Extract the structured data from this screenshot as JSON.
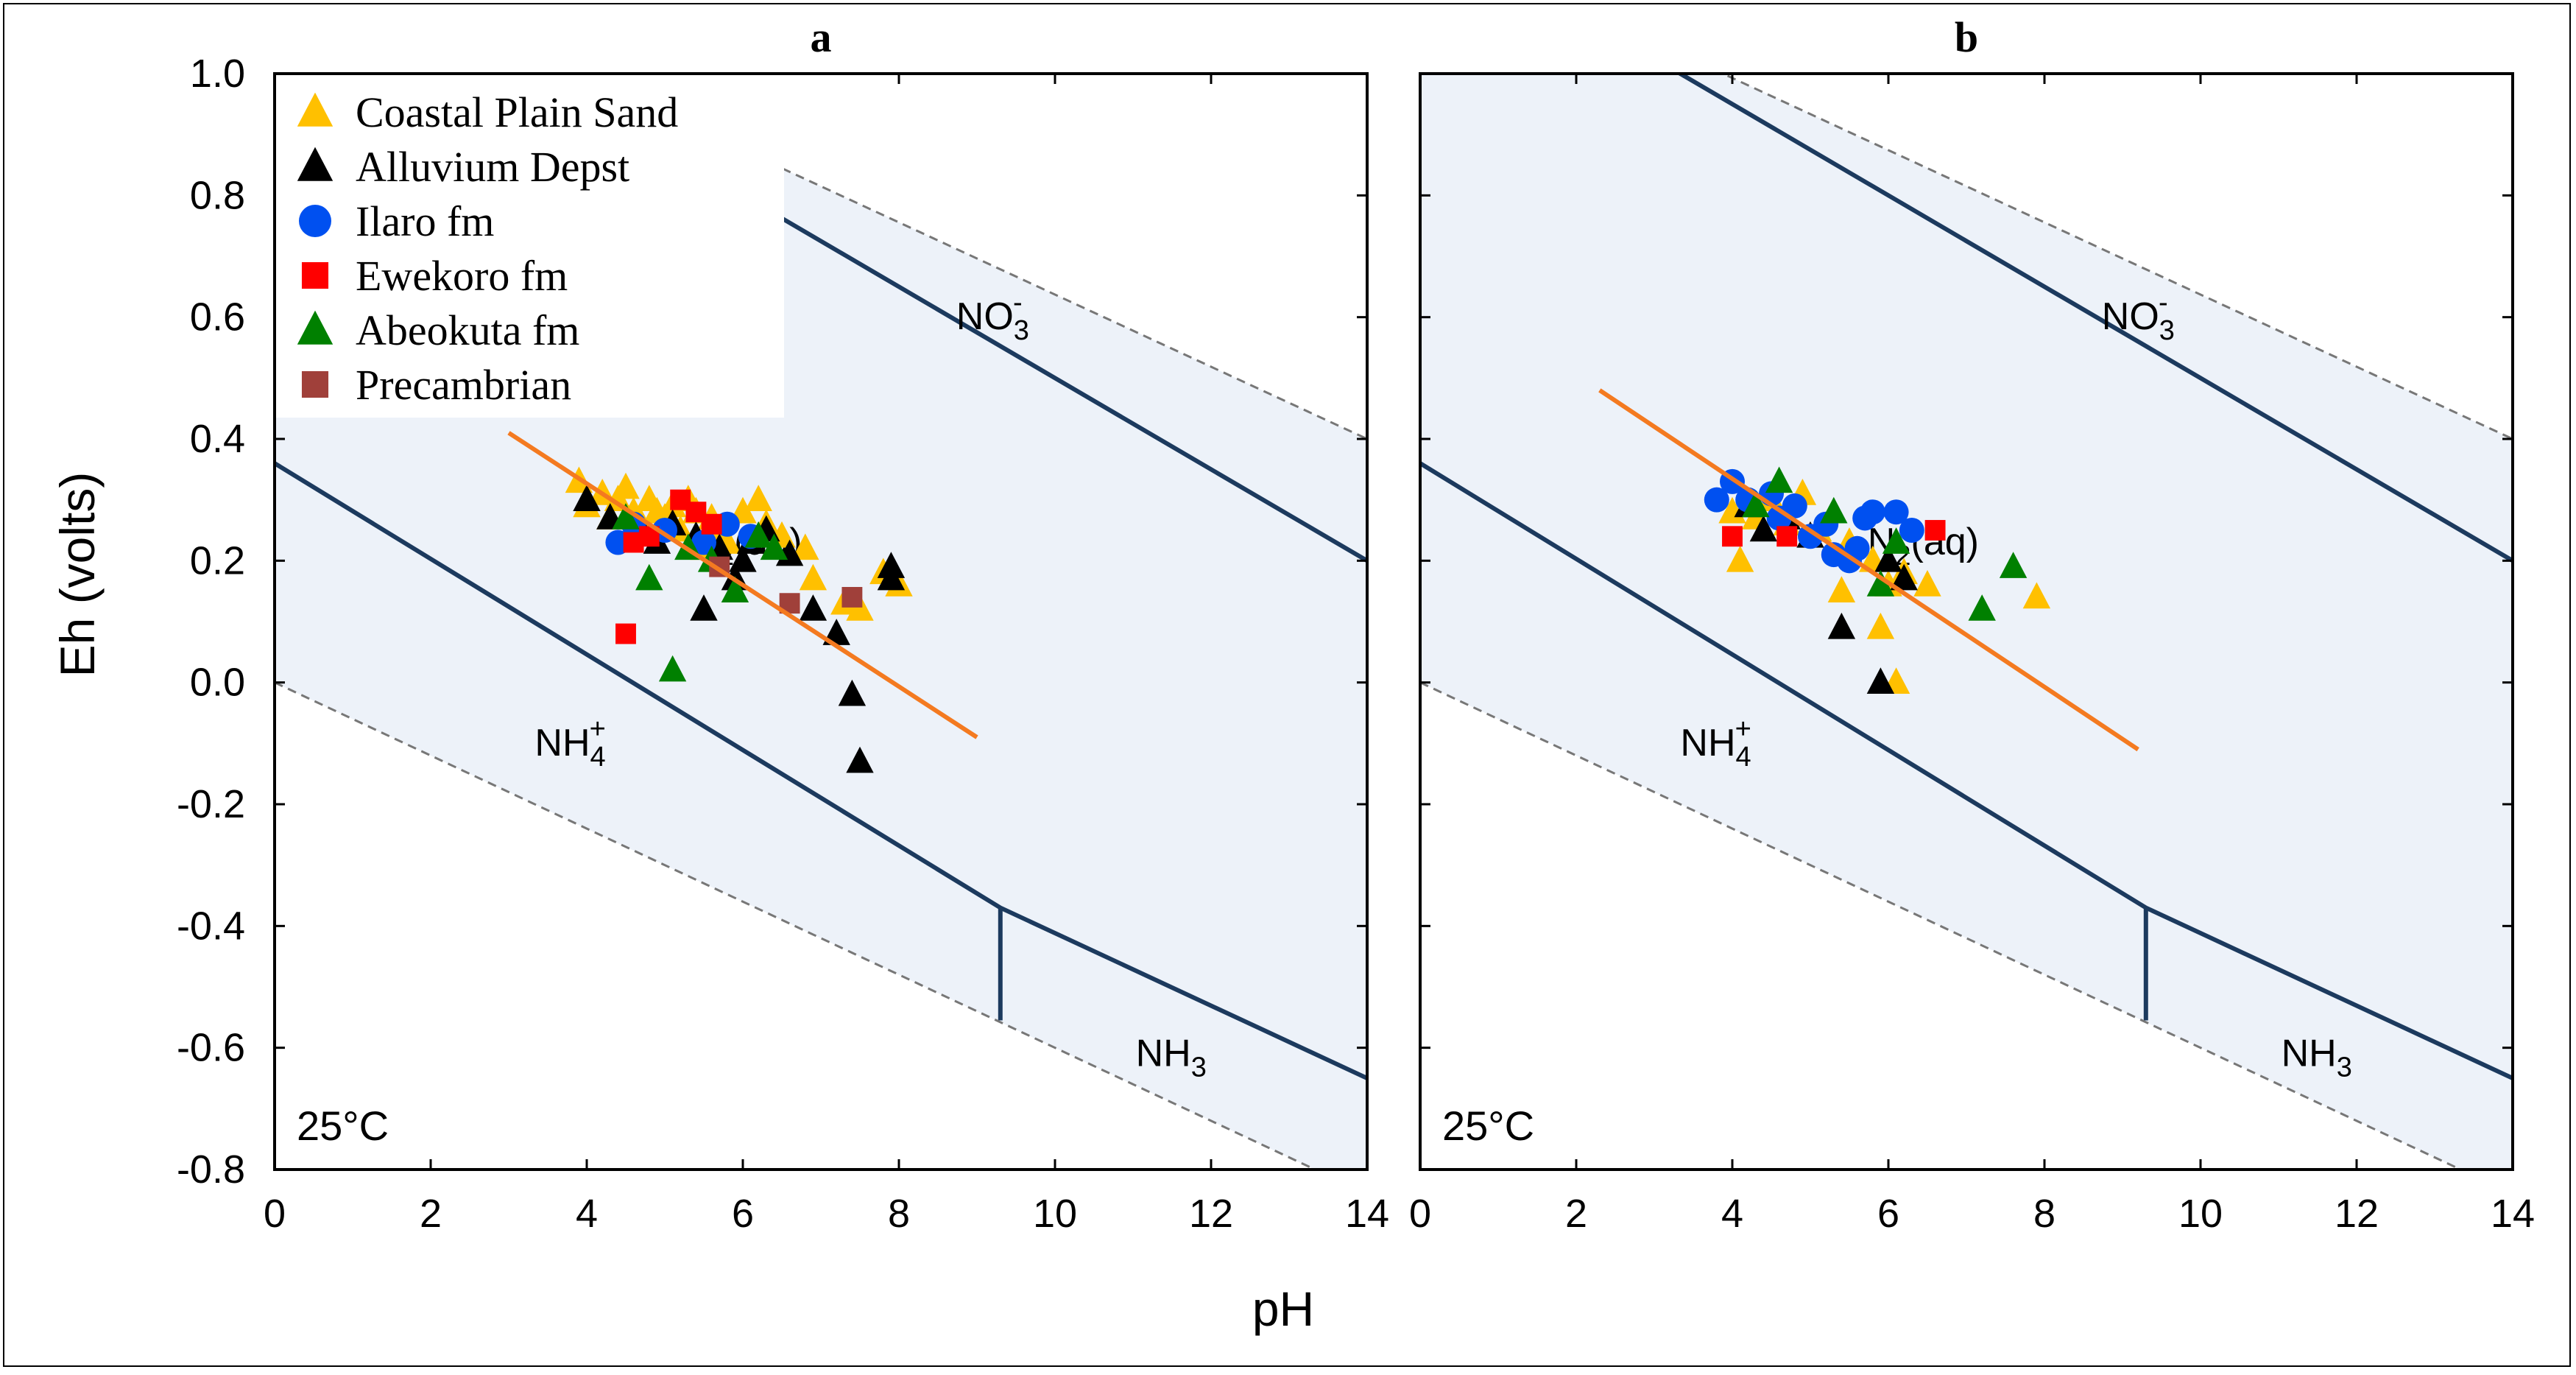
{
  "figure": {
    "ylabel": "Eh (volts)",
    "xlabel": "pH"
  },
  "chart_data": [
    {
      "type": "scatter",
      "title": "a",
      "xlim": [
        0,
        14
      ],
      "ylim": [
        -0.8,
        1.0
      ],
      "xticks": [
        "0",
        "2",
        "4",
        "6",
        "8",
        "10",
        "12",
        "14"
      ],
      "yticks": [
        "1.0",
        "0.8",
        "0.6",
        "0.4",
        "0.2",
        "0.0",
        "-0.2",
        "-0.4",
        "-0.6",
        "-0.8"
      ],
      "temperature": "25°C",
      "regions": [
        {
          "label": "NO",
          "sub": "3",
          "sup": "-",
          "x": 9.3,
          "y": 0.58
        },
        {
          "label": "N",
          "sub": "2",
          "suffix": "(aq)",
          "x": 5.9,
          "y": 0.21
        },
        {
          "label": "NH",
          "sub": "4",
          "sup": "+",
          "x": 3.9,
          "y": -0.12
        },
        {
          "label": "NH",
          "sub": "3",
          "x": 11.6,
          "y": -0.63
        }
      ],
      "boundaries": [
        {
          "style": "solid",
          "points": [
            [
              0,
              1.25
            ],
            [
              14,
              0.2
            ]
          ]
        },
        {
          "style": "solid",
          "points": [
            [
              0,
              0.36
            ],
            [
              9.3,
              -0.37
            ],
            [
              14,
              -0.65
            ]
          ]
        },
        {
          "style": "solid",
          "points": [
            [
              9.3,
              -0.37
            ],
            [
              9.3,
              -0.555
            ]
          ]
        },
        {
          "style": "dashed",
          "points": [
            [
              0,
              1.23
            ],
            [
              14,
              0.4
            ]
          ]
        },
        {
          "style": "dashed",
          "points": [
            [
              0,
              0.0
            ],
            [
              14,
              -0.84
            ]
          ]
        }
      ],
      "trendline": {
        "color": "#f47a20",
        "points": [
          [
            3.0,
            0.41
          ],
          [
            9.0,
            -0.09
          ]
        ]
      },
      "legend": {
        "location": "top-left",
        "entries": [
          {
            "label": "Coastal Plain Sand",
            "marker": "triangle",
            "color": "#ffc000"
          },
          {
            "label": "Alluvium Depst",
            "marker": "triangle",
            "color": "#000000"
          },
          {
            "label": "Ilaro fm",
            "marker": "circle",
            "color": "#0050f0"
          },
          {
            "label": "Ewekoro fm",
            "marker": "square",
            "color": "#ff0000"
          },
          {
            "label": "Abeokuta fm",
            "marker": "triangle",
            "color": "#008000"
          },
          {
            "label": "Precambrian",
            "marker": "square",
            "color": "#a0403a"
          }
        ]
      },
      "series": [
        {
          "name": "Coastal Plain Sand",
          "points": [
            [
              3.9,
              0.33
            ],
            [
              4.0,
              0.29
            ],
            [
              4.2,
              0.31
            ],
            [
              4.4,
              0.3
            ],
            [
              4.5,
              0.32
            ],
            [
              4.6,
              0.28
            ],
            [
              4.7,
              0.26
            ],
            [
              4.8,
              0.3
            ],
            [
              4.9,
              0.28
            ],
            [
              5.0,
              0.27
            ],
            [
              5.1,
              0.29
            ],
            [
              5.2,
              0.25
            ],
            [
              5.3,
              0.3
            ],
            [
              5.4,
              0.28
            ],
            [
              5.6,
              0.27
            ],
            [
              5.7,
              0.25
            ],
            [
              5.8,
              0.23
            ],
            [
              6.0,
              0.28
            ],
            [
              6.2,
              0.3
            ],
            [
              6.3,
              0.26
            ],
            [
              6.5,
              0.24
            ],
            [
              6.8,
              0.22
            ],
            [
              6.9,
              0.17
            ],
            [
              7.3,
              0.13
            ],
            [
              7.5,
              0.12
            ],
            [
              7.8,
              0.18
            ],
            [
              8.0,
              0.16
            ],
            [
              4.3,
              0.27
            ],
            [
              5.5,
              0.22
            ]
          ]
        },
        {
          "name": "Alluvium Depst",
          "points": [
            [
              4.0,
              0.3
            ],
            [
              4.3,
              0.27
            ],
            [
              4.7,
              0.25
            ],
            [
              4.9,
              0.23
            ],
            [
              5.1,
              0.26
            ],
            [
              5.4,
              0.24
            ],
            [
              5.7,
              0.22
            ],
            [
              5.9,
              0.17
            ],
            [
              6.0,
              0.2
            ],
            [
              6.1,
              0.23
            ],
            [
              6.3,
              0.25
            ],
            [
              6.6,
              0.21
            ],
            [
              6.9,
              0.12
            ],
            [
              7.2,
              0.08
            ],
            [
              5.5,
              0.12
            ],
            [
              7.4,
              -0.02
            ],
            [
              7.5,
              -0.13
            ],
            [
              7.9,
              0.17
            ],
            [
              7.9,
              0.19
            ]
          ]
        },
        {
          "name": "Ilaro fm",
          "points": [
            [
              4.4,
              0.23
            ],
            [
              4.6,
              0.26
            ],
            [
              5.0,
              0.25
            ],
            [
              5.5,
              0.23
            ],
            [
              5.8,
              0.26
            ],
            [
              6.1,
              0.24
            ]
          ]
        },
        {
          "name": "Ewekoro fm",
          "points": [
            [
              4.5,
              0.08
            ],
            [
              4.6,
              0.23
            ],
            [
              4.8,
              0.24
            ],
            [
              5.2,
              0.3
            ],
            [
              5.4,
              0.28
            ],
            [
              5.6,
              0.26
            ]
          ]
        },
        {
          "name": "Abeokuta fm",
          "points": [
            [
              4.5,
              0.27
            ],
            [
              4.8,
              0.17
            ],
            [
              5.1,
              0.02
            ],
            [
              5.3,
              0.22
            ],
            [
              5.6,
              0.2
            ],
            [
              5.9,
              0.15
            ],
            [
              6.2,
              0.24
            ],
            [
              6.4,
              0.22
            ]
          ]
        },
        {
          "name": "Precambrian",
          "points": [
            [
              5.7,
              0.19
            ],
            [
              6.6,
              0.13
            ],
            [
              7.4,
              0.14
            ]
          ]
        }
      ]
    },
    {
      "type": "scatter",
      "title": "b",
      "xlim": [
        0,
        14
      ],
      "ylim": [
        -0.8,
        1.0
      ],
      "xticks": [
        "0",
        "2",
        "4",
        "6",
        "8",
        "10",
        "12",
        "14"
      ],
      "yticks": [
        "1.0",
        "0.8",
        "0.6",
        "0.4",
        "0.2",
        "0.0",
        "-0.2",
        "-0.4",
        "-0.6",
        "-0.8"
      ],
      "temperature": "25°C",
      "regions": [
        {
          "label": "NO",
          "sub": "3",
          "sup": "-",
          "x": 9.3,
          "y": 0.58
        },
        {
          "label": "N",
          "sub": "2",
          "suffix": "(aq)",
          "x": 6.3,
          "y": 0.21
        },
        {
          "label": "NH",
          "sub": "4",
          "sup": "+",
          "x": 3.9,
          "y": -0.12
        },
        {
          "label": "NH",
          "sub": "3",
          "x": 11.6,
          "y": -0.63
        }
      ],
      "boundaries": [
        {
          "style": "solid",
          "points": [
            [
              0,
              1.25
            ],
            [
              14,
              0.2
            ]
          ]
        },
        {
          "style": "solid",
          "points": [
            [
              0,
              0.36
            ],
            [
              9.3,
              -0.37
            ],
            [
              14,
              -0.65
            ]
          ]
        },
        {
          "style": "solid",
          "points": [
            [
              9.3,
              -0.37
            ],
            [
              9.3,
              -0.555
            ]
          ]
        },
        {
          "style": "dashed",
          "points": [
            [
              0,
              1.23
            ],
            [
              14,
              0.4
            ]
          ]
        },
        {
          "style": "dashed",
          "points": [
            [
              0,
              0.0
            ],
            [
              14,
              -0.84
            ]
          ]
        }
      ],
      "trendline": {
        "color": "#f47a20",
        "points": [
          [
            2.3,
            0.48
          ],
          [
            9.2,
            -0.11
          ]
        ]
      },
      "series": [
        {
          "name": "Coastal Plain Sand",
          "points": [
            [
              4.0,
              0.28
            ],
            [
              4.1,
              0.2
            ],
            [
              4.3,
              0.27
            ],
            [
              4.5,
              0.3
            ],
            [
              4.7,
              0.26
            ],
            [
              4.9,
              0.31
            ],
            [
              5.1,
              0.25
            ],
            [
              5.4,
              0.15
            ],
            [
              5.5,
              0.23
            ],
            [
              5.8,
              0.2
            ],
            [
              5.9,
              0.09
            ],
            [
              6.1,
              0.0
            ],
            [
              6.2,
              0.18
            ],
            [
              6.5,
              0.16
            ],
            [
              7.9,
              0.14
            ],
            [
              6.0,
              0.16
            ]
          ]
        },
        {
          "name": "Alluvium Depst",
          "points": [
            [
              4.2,
              0.29
            ],
            [
              4.4,
              0.25
            ],
            [
              4.7,
              0.27
            ],
            [
              5.0,
              0.24
            ],
            [
              5.4,
              0.09
            ],
            [
              5.9,
              0.0
            ],
            [
              6.0,
              0.2
            ],
            [
              6.2,
              0.17
            ]
          ]
        },
        {
          "name": "Ilaro fm",
          "points": [
            [
              3.8,
              0.3
            ],
            [
              4.0,
              0.33
            ],
            [
              4.2,
              0.3
            ],
            [
              4.5,
              0.31
            ],
            [
              4.8,
              0.29
            ],
            [
              5.0,
              0.24
            ],
            [
              5.2,
              0.26
            ],
            [
              5.3,
              0.21
            ],
            [
              5.5,
              0.2
            ],
            [
              5.7,
              0.27
            ],
            [
              5.8,
              0.28
            ],
            [
              6.1,
              0.28
            ],
            [
              6.3,
              0.25
            ],
            [
              5.6,
              0.22
            ],
            [
              4.6,
              0.27
            ]
          ]
        },
        {
          "name": "Ewekoro fm",
          "points": [
            [
              4.0,
              0.24
            ],
            [
              4.7,
              0.24
            ],
            [
              6.6,
              0.25
            ]
          ]
        },
        {
          "name": "Abeokuta fm",
          "points": [
            [
              4.6,
              0.33
            ],
            [
              5.3,
              0.28
            ],
            [
              5.9,
              0.16
            ],
            [
              6.1,
              0.23
            ],
            [
              7.2,
              0.12
            ],
            [
              7.6,
              0.19
            ],
            [
              4.3,
              0.29
            ]
          ]
        },
        {
          "name": "Precambrian",
          "points": []
        }
      ]
    }
  ]
}
